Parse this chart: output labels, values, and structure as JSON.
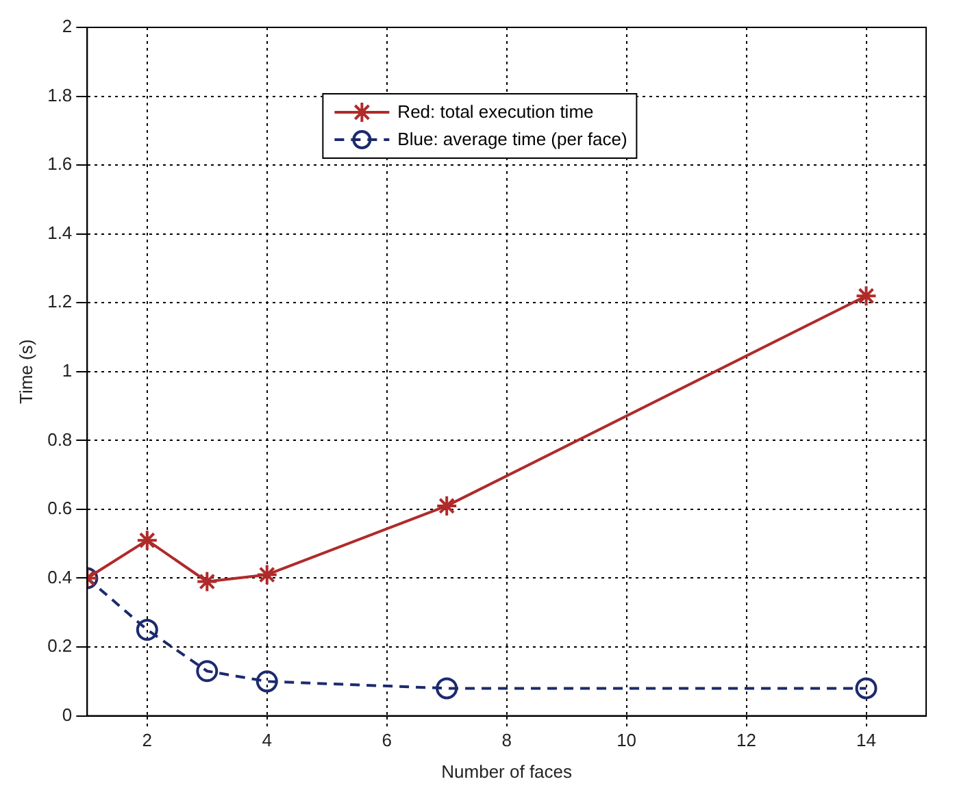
{
  "chart_data": {
    "type": "line",
    "xlabel": "Number of faces",
    "ylabel": "Time (s)",
    "xlim": [
      1,
      15
    ],
    "xticks": [
      2,
      4,
      6,
      8,
      10,
      12,
      14
    ],
    "ylim": [
      0,
      2
    ],
    "yticks": [
      0,
      0.2,
      0.4,
      0.6,
      0.8,
      1,
      1.2,
      1.4,
      1.6,
      1.8,
      2
    ],
    "grid": true,
    "legend": "top",
    "series": [
      {
        "name": "Red: total execution time",
        "color": "#b02a2a",
        "x": [
          1,
          2,
          3,
          4,
          7,
          14
        ],
        "values": [
          0.4,
          0.51,
          0.39,
          0.41,
          0.61,
          1.22
        ],
        "marker": "cross",
        "line_style": "solid"
      },
      {
        "name": "Blue: average time (per face)",
        "color": "#1c2a6e",
        "x": [
          1,
          2,
          3,
          4,
          7,
          14
        ],
        "values": [
          0.4,
          0.25,
          0.13,
          0.1,
          0.08,
          0.08
        ],
        "marker": "circle",
        "line_style": "dashed"
      }
    ]
  }
}
